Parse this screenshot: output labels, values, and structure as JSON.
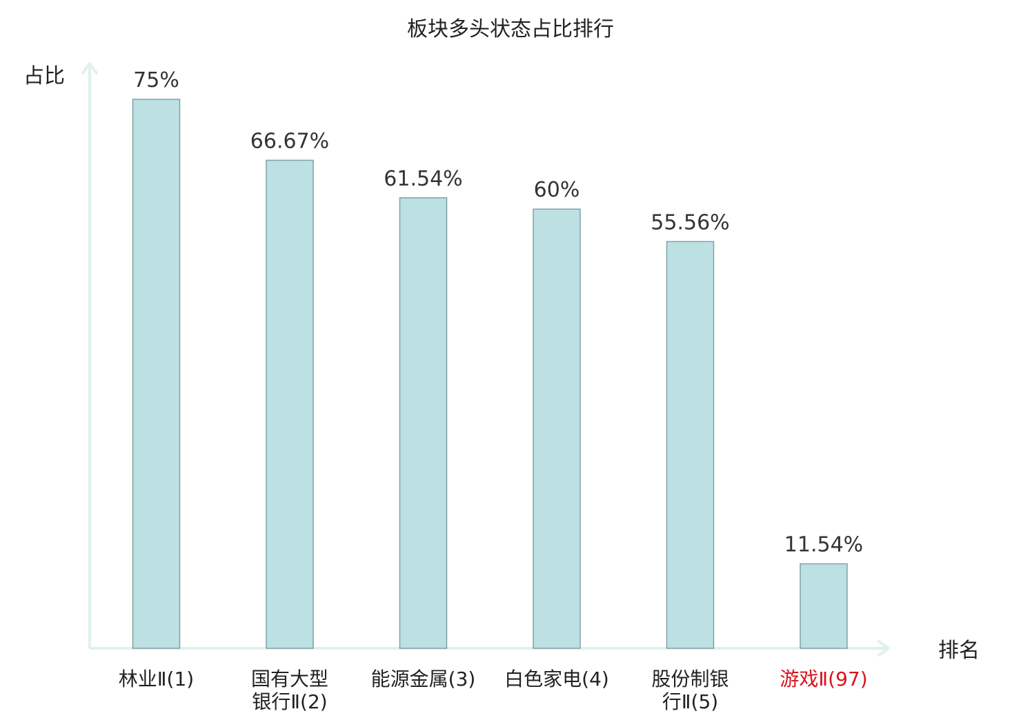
{
  "chart_data": {
    "type": "bar",
    "title": "板块多头状态占比排行",
    "ylabel": "占比",
    "xlabel": "排名",
    "categories": [
      [
        "林业Ⅱ(1)"
      ],
      [
        "国有大型",
        "银行Ⅱ(2)"
      ],
      [
        "能源金属(3)"
      ],
      [
        "白色家电(4)"
      ],
      [
        "股份制银",
        "行Ⅱ(5)"
      ],
      [
        "游戏Ⅱ(97)"
      ]
    ],
    "values": [
      75,
      66.67,
      61.54,
      60,
      55.56,
      11.54
    ],
    "value_labels": [
      "75%",
      "66.67%",
      "61.54%",
      "60%",
      "55.56%",
      "11.54%"
    ],
    "highlight_categories": [
      5
    ],
    "highlight_color": "#d9121e",
    "bar_fill": "#bde0e2",
    "bar_stroke": "#7fa2a6",
    "axis_color": "#dff1ee",
    "text_color": "#222222",
    "ylim": [
      0,
      80
    ],
    "grid": false,
    "legend": "none"
  }
}
